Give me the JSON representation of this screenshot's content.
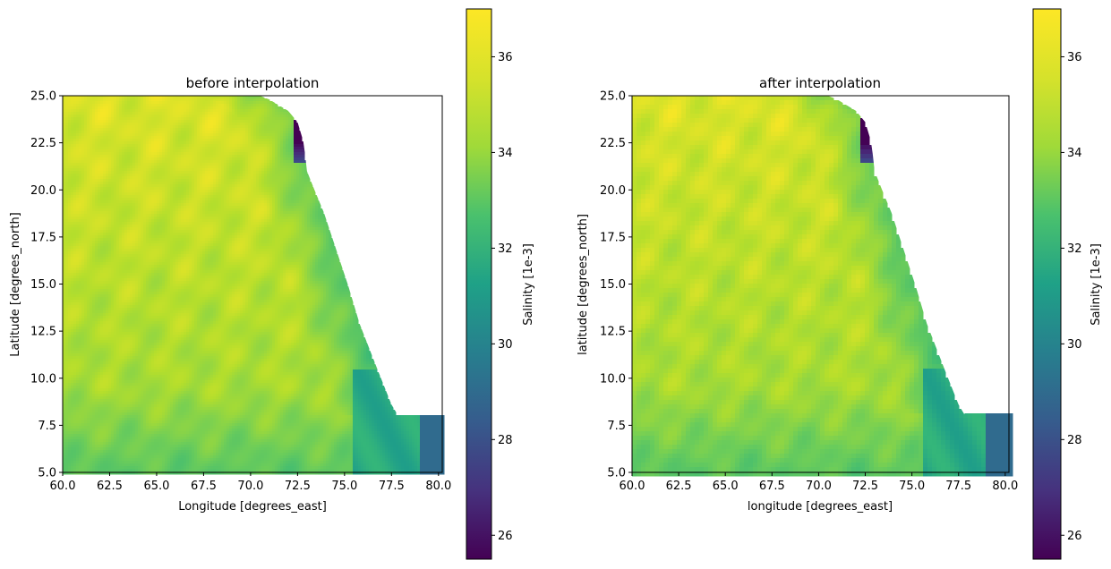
{
  "chart_data": [
    {
      "type": "heatmap",
      "title": "before interpolation",
      "xlabel": "Longitude [degrees_east]",
      "ylabel": "Latitude [degrees_north]",
      "xlim": [
        60.0,
        80.2
      ],
      "ylim": [
        5.0,
        25.0
      ],
      "x_ticks": [
        "60.0",
        "62.5",
        "65.0",
        "67.5",
        "70.0",
        "72.5",
        "75.0",
        "77.5",
        "80.0"
      ],
      "y_ticks": [
        "5.0",
        "7.5",
        "10.0",
        "12.5",
        "15.0",
        "17.5",
        "20.0",
        "22.5",
        "25.0"
      ],
      "colormap": "viridis",
      "variable": "Salinity",
      "colorbar": {
        "label": "Salinity [1e-3]",
        "range": [
          25.5,
          37.0
        ],
        "ticks": [
          "26",
          "28",
          "30",
          "32",
          "34",
          "36"
        ]
      },
      "salinity_regions": {
        "open_sea_north": 36.3,
        "central_arabian_sea": 35.8,
        "southwest_basin": 35.0,
        "near_coast": 33.5,
        "southeast_shelf": 32.5,
        "gulf_of_khambhat_head": 25.8,
        "southern_kerala_coast": 29.5
      },
      "coastline": [
        [
          70.5,
          25.0
        ],
        [
          71.0,
          24.8
        ],
        [
          72.0,
          24.2
        ],
        [
          72.5,
          23.6
        ],
        [
          72.8,
          22.6
        ],
        [
          72.9,
          21.9
        ],
        [
          73.0,
          21.0
        ],
        [
          73.4,
          20.0
        ],
        [
          73.9,
          18.8
        ],
        [
          74.6,
          16.7
        ],
        [
          75.2,
          14.9
        ],
        [
          75.8,
          12.9
        ],
        [
          76.7,
          10.6
        ],
        [
          77.5,
          8.6
        ],
        [
          77.8,
          8.1
        ],
        [
          78.6,
          8.7
        ],
        [
          79.5,
          9.8
        ],
        [
          80.2,
          11.0
        ]
      ],
      "grid": false,
      "interpolated": false
    },
    {
      "type": "heatmap",
      "title": "after interpolation",
      "xlabel": "longitude [degrees_east]",
      "ylabel": "latitude [degrees_north]",
      "xlim": [
        60.0,
        80.2
      ],
      "ylim": [
        5.0,
        25.0
      ],
      "x_ticks": [
        "60.0",
        "62.5",
        "65.0",
        "67.5",
        "70.0",
        "72.5",
        "75.0",
        "77.5",
        "80.0"
      ],
      "y_ticks": [
        "5.0",
        "7.5",
        "10.0",
        "12.5",
        "15.0",
        "17.5",
        "20.0",
        "22.5",
        "25.0"
      ],
      "colormap": "viridis",
      "variable": "Salinity",
      "colorbar": {
        "label": "Salinity [1e-3]",
        "range": [
          25.5,
          37.0
        ],
        "ticks": [
          "26",
          "28",
          "30",
          "32",
          "34",
          "36"
        ]
      },
      "salinity_regions": {
        "open_sea_north": 36.3,
        "central_arabian_sea": 35.8,
        "southwest_basin": 35.0,
        "near_coast": 33.5,
        "southeast_shelf": 32.5,
        "gulf_of_khambhat_head": 25.8,
        "southern_kerala_coast": 29.5
      },
      "coastline": [
        [
          70.5,
          25.0
        ],
        [
          71.0,
          24.8
        ],
        [
          72.0,
          24.2
        ],
        [
          72.5,
          23.6
        ],
        [
          72.8,
          22.6
        ],
        [
          72.9,
          21.9
        ],
        [
          73.0,
          21.0
        ],
        [
          73.4,
          20.0
        ],
        [
          73.9,
          18.8
        ],
        [
          74.6,
          16.7
        ],
        [
          75.2,
          14.9
        ],
        [
          75.8,
          12.9
        ],
        [
          76.7,
          10.6
        ],
        [
          77.5,
          8.6
        ],
        [
          77.8,
          8.1
        ],
        [
          78.6,
          8.7
        ],
        [
          79.5,
          9.8
        ],
        [
          80.2,
          11.0
        ]
      ],
      "grid": false,
      "interpolated": true
    }
  ]
}
